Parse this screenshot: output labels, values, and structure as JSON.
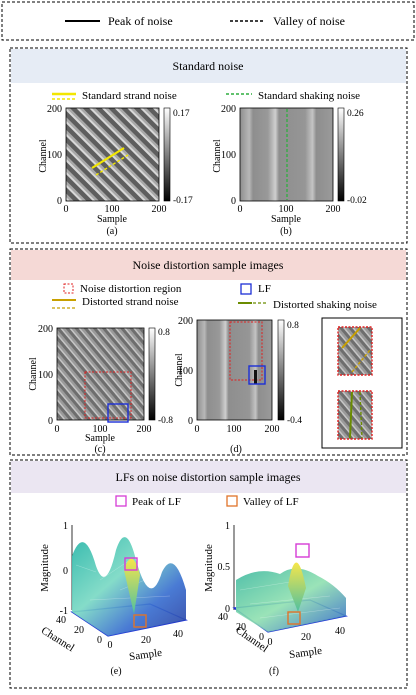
{
  "top_legend": {
    "peak_label": "Peak of noise",
    "valley_label": "Valley of noise"
  },
  "panel1": {
    "title": "Standard noise",
    "legend_strand": "Standard strand noise",
    "legend_shaking": "Standard shaking noise",
    "plot_a": {
      "ylabel": "Channel",
      "xlabel": "Sample",
      "caption": "(a)",
      "y_ticks": [
        "200",
        "100",
        "0"
      ],
      "x_ticks": [
        "0",
        "100",
        "200"
      ],
      "cbar_max": "0.17",
      "cbar_min": "-0.17"
    },
    "plot_b": {
      "ylabel": "Channel",
      "xlabel": "Sample",
      "caption": "(b)",
      "y_ticks": [
        "200",
        "100",
        "0"
      ],
      "x_ticks": [
        "0",
        "100",
        "200"
      ],
      "cbar_max": "0.26",
      "cbar_min": "-0.02"
    }
  },
  "panel2": {
    "title": "Noise distortion sample images",
    "legend_region": "Noise distortion region",
    "legend_lf": "LF",
    "legend_strand": "Distorted strand noise",
    "legend_shaking": "Distorted shaking noise",
    "plot_c": {
      "ylabel": "Channel",
      "xlabel": "Sample",
      "caption": "(c)",
      "y_ticks": [
        "200",
        "100",
        "0"
      ],
      "x_ticks": [
        "0",
        "100",
        "200"
      ],
      "cbar_max": "0.8",
      "cbar_min": "-0.8"
    },
    "plot_d": {
      "ylabel": "Channel",
      "xlabel": "Sample",
      "caption": "(d)",
      "y_ticks": [
        "200",
        "100",
        "0"
      ],
      "x_ticks": [
        "0",
        "100",
        "200"
      ],
      "cbar_max": "0.8",
      "cbar_min": "-0.4"
    }
  },
  "panel3": {
    "title": "LFs on noise distortion sample images",
    "legend_peak": "Peak of LF",
    "legend_valley": "Valley of LF",
    "plot_e": {
      "zlabel": "Magnitude",
      "xlabel": "Sample",
      "ylabel": "Channel",
      "caption": "(e)",
      "z_ticks": [
        "1",
        "0",
        "-1"
      ],
      "sample_ticks": [
        "0",
        "20",
        "40"
      ],
      "channel_ticks": [
        "40",
        "20",
        "0"
      ]
    },
    "plot_f": {
      "zlabel": "Magnitude",
      "xlabel": "Sample",
      "ylabel": "Channel",
      "caption": "(f)",
      "z_ticks": [
        "1",
        "0.5",
        "0"
      ],
      "sample_ticks": [
        "0",
        "20",
        "40"
      ],
      "channel_ticks": [
        "40",
        "20",
        "0"
      ]
    }
  },
  "colors": {
    "panel1_header": "#e6ecf5",
    "panel2_header": "#f5d9d6",
    "panel3_header": "#ebe6f2",
    "strand": "#f2e600",
    "shaking": "#2fae3f",
    "distorted_strand": "#c8a000",
    "distorted_shaking": "#6b8c00",
    "region": "#e02020",
    "lf": "#1c2fd6",
    "peak_lf": "#d63cd6",
    "valley_lf": "#e0742a"
  }
}
